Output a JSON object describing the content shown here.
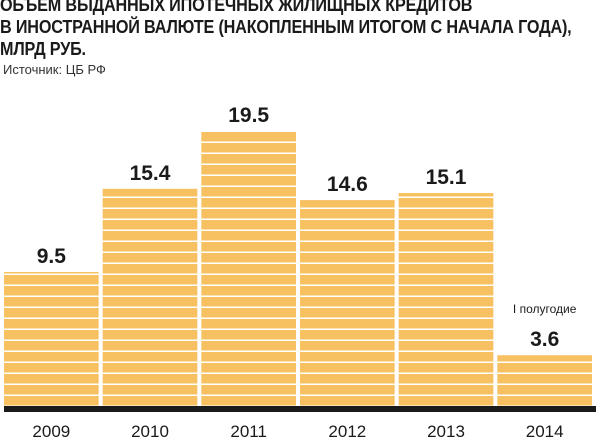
{
  "header": {
    "title_lines": [
      "ОБЪЕМ ВЫДАННЫХ ИПОТЕЧНЫХ ЖИЛИЩНЫХ КРЕДИТОВ",
      "В ИНОСТРАННОЙ ВАЛЮТЕ (НАКОПЛЕННЫМ ИТОГОМ С НАЧАЛА ГОДА),",
      "МЛРД РУБ."
    ],
    "source": "Источник: ЦБ РФ"
  },
  "colors": {
    "bar": "#f7c060",
    "bar_stripe": "#ffffff",
    "baseline": "#1a1a1a"
  },
  "chart_data": {
    "type": "bar",
    "title": "ОБЪЕМ ВЫДАННЫХ ИПОТЕЧНЫХ ЖИЛИЩНЫХ КРЕДИТОВ В ИНОСТРАННОЙ ВАЛЮТЕ (НАКОПЛЕННЫМ ИТОГОМ С НАЧАЛА ГОДА), МЛРД РУБ.",
    "categories": [
      "2009",
      "2010",
      "2011",
      "2012",
      "2013",
      "2014"
    ],
    "values": [
      9.5,
      15.4,
      19.5,
      14.6,
      15.1,
      3.6
    ],
    "value_labels": [
      "9.5",
      "15.4",
      "19.5",
      "14.6",
      "15.1",
      "3.6"
    ],
    "annotations": [
      {
        "category": "2014",
        "text": "I полугодие"
      }
    ],
    "xlabel": "",
    "ylabel": "",
    "ylim": [
      0,
      19.5
    ],
    "grid": false,
    "legend": "none"
  }
}
